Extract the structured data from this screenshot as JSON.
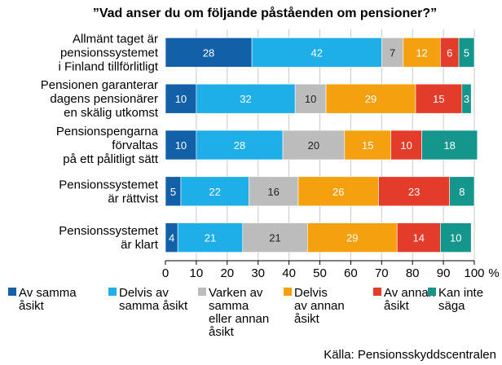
{
  "chart_data": {
    "type": "bar",
    "orientation": "horizontal",
    "stacked": true,
    "title": "”Vad anser du om följande påståenden om pensioner?”",
    "categories": [
      [
        "Allmänt taget är",
        "pensionssystemet",
        "i Finland tillförlitligt"
      ],
      [
        "Pensionen garanterar",
        "dagens pensionärer",
        "en skälig utkomst"
      ],
      [
        "Pensionspengarna",
        "förvaltas",
        "på ett pålitligt sätt"
      ],
      [
        "Pensionssystemet",
        "är rättvist"
      ],
      [
        "Pensionssystemet",
        "är klart"
      ]
    ],
    "series": [
      {
        "name": "Av samma åsikt",
        "legend_lines": [
          "Av samma",
          "åsikt"
        ],
        "color": "#1160a8",
        "values": [
          28,
          10,
          10,
          5,
          4
        ]
      },
      {
        "name": "Delvis av samma åsikt",
        "legend_lines": [
          "Delvis av",
          "samma åsikt"
        ],
        "color": "#1eaee8",
        "values": [
          42,
          32,
          28,
          22,
          21
        ]
      },
      {
        "name": "Varken av samma eller annan åsikt",
        "legend_lines": [
          "Varken av",
          "samma",
          "eller annan",
          "åsikt"
        ],
        "color": "#bcbcbc",
        "values": [
          7,
          10,
          20,
          16,
          21
        ]
      },
      {
        "name": "Delvis av annan åsikt",
        "legend_lines": [
          "Delvis",
          "av annan",
          "åsikt"
        ],
        "color": "#f5a00f",
        "values": [
          12,
          29,
          15,
          26,
          29
        ]
      },
      {
        "name": "Av annan åsikt",
        "legend_lines": [
          "Av annan",
          "åsikt"
        ],
        "color": "#e43c2a",
        "values": [
          6,
          15,
          10,
          23,
          14
        ]
      },
      {
        "name": "Kan inte säga",
        "legend_lines": [
          "Kan inte",
          "säga"
        ],
        "color": "#15968c",
        "values": [
          5,
          3,
          18,
          8,
          10
        ]
      }
    ],
    "xlim": [
      0,
      100
    ],
    "xticks": [
      0,
      10,
      20,
      30,
      40,
      50,
      60,
      70,
      80,
      90,
      100
    ],
    "xunit": "%",
    "grid": true,
    "legend_position": "bottom",
    "source": "Källa: Pensionsskyddscentralen"
  }
}
